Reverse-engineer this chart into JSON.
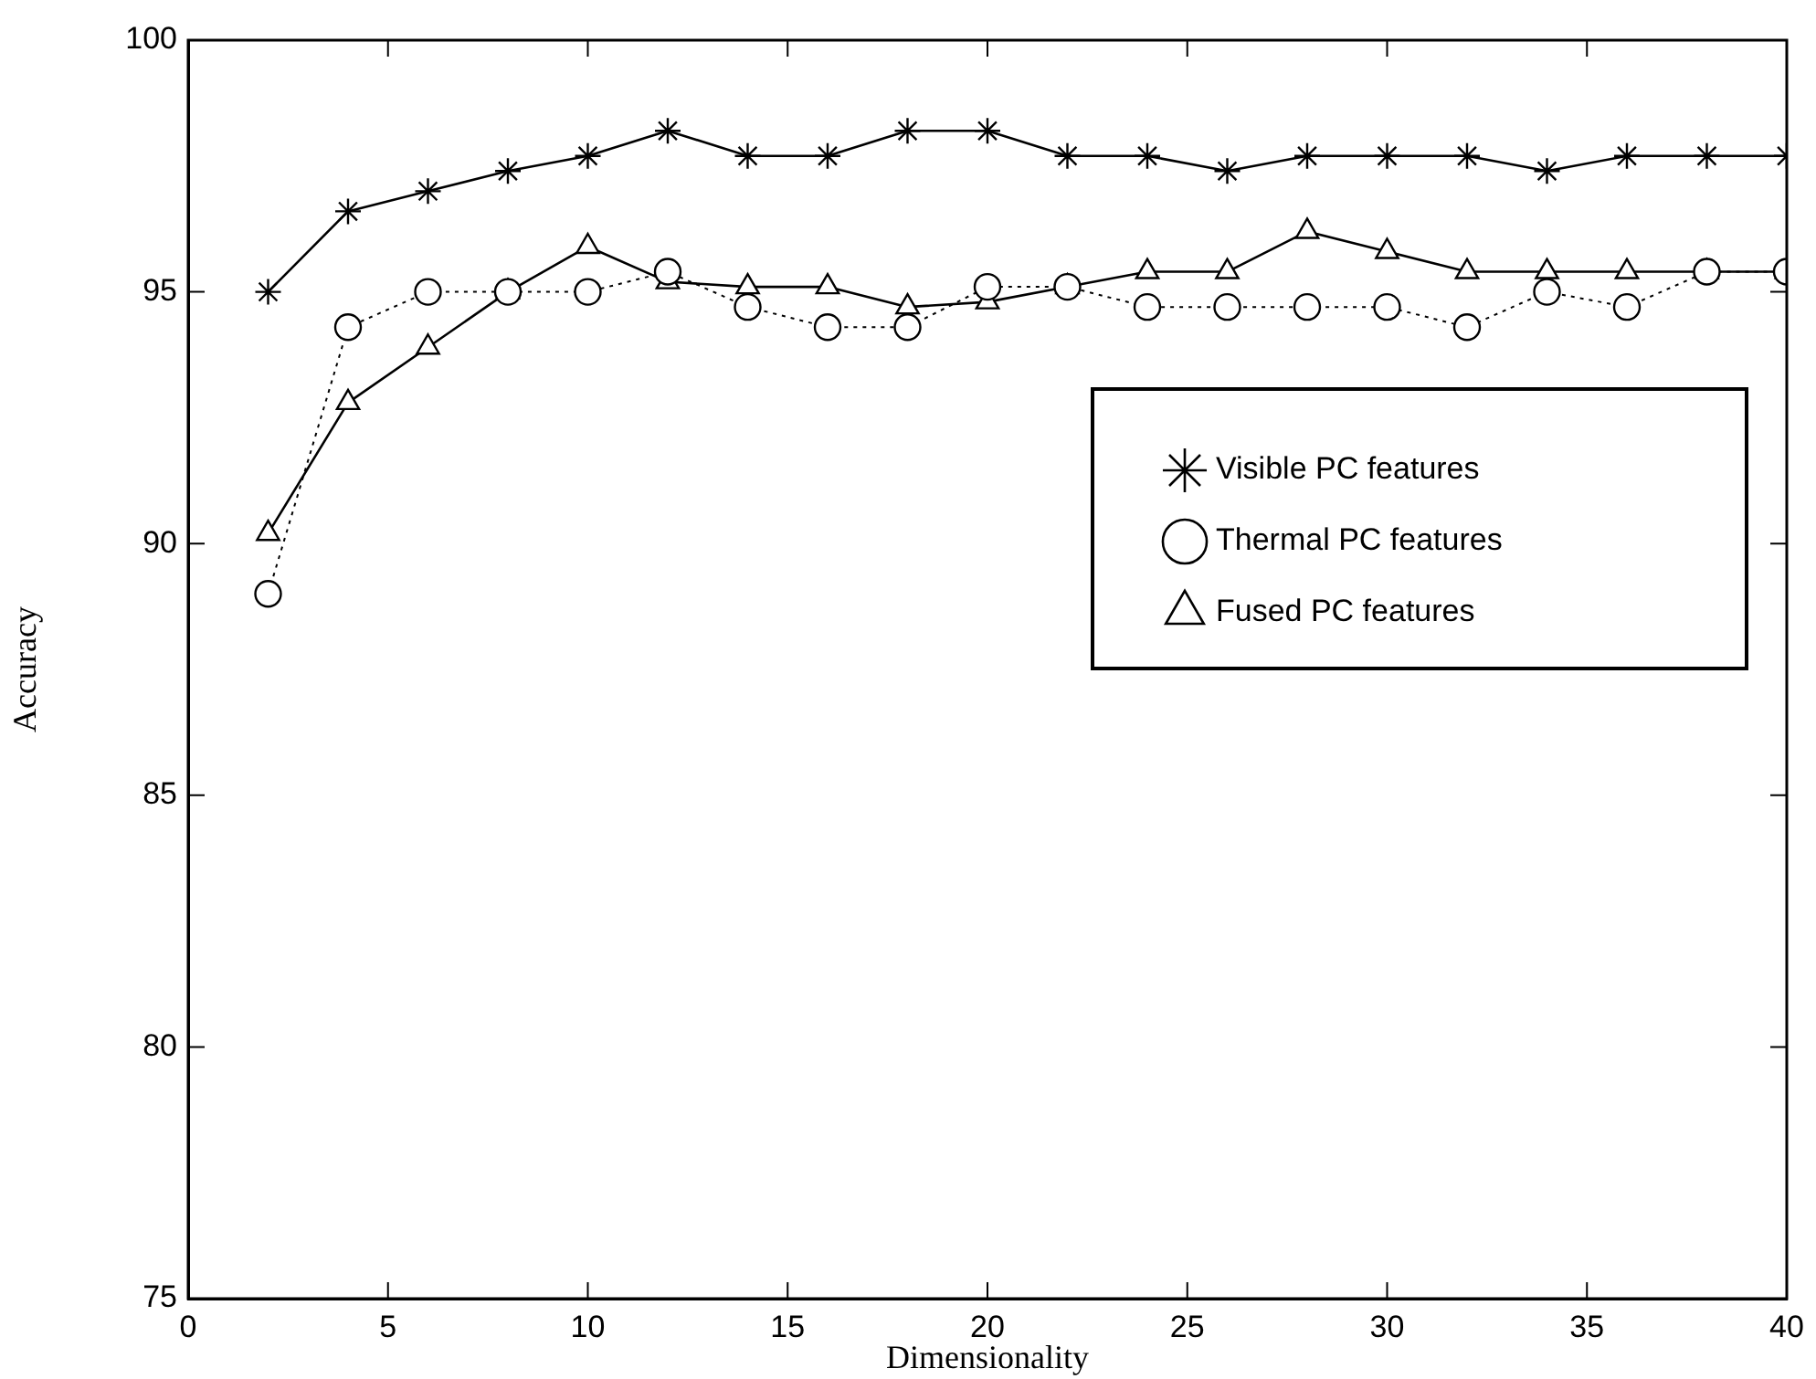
{
  "chart_data": {
    "type": "line",
    "xlabel": "Dimensionality",
    "ylabel": "Accuracy",
    "x": [
      2,
      4,
      6,
      8,
      10,
      12,
      14,
      16,
      18,
      20,
      22,
      24,
      26,
      28,
      30,
      32,
      34,
      36,
      38,
      40
    ],
    "xlim": [
      0,
      40
    ],
    "xticks": [
      0,
      5,
      10,
      15,
      20,
      25,
      30,
      35,
      40
    ],
    "ylim": [
      75,
      100
    ],
    "yticks": [
      75,
      80,
      85,
      90,
      95,
      100
    ],
    "grid": false,
    "legend": "right",
    "series": [
      {
        "name": "Visible PC features",
        "color": "#000000",
        "marker": "cross",
        "line_style": "solid",
        "values": [
          95.0,
          96.6,
          97.0,
          97.4,
          97.7,
          98.2,
          97.7,
          97.7,
          98.2,
          98.2,
          97.7,
          97.7,
          97.4,
          97.7,
          97.7,
          97.7,
          97.4,
          97.7,
          97.7,
          97.7
        ]
      },
      {
        "name": "Thermal PC features",
        "color": "#000000",
        "marker": "circle",
        "line_style": "dotted",
        "values": [
          89.0,
          94.3,
          95.0,
          95.0,
          95.0,
          95.4,
          94.7,
          94.3,
          94.3,
          95.1,
          95.1,
          94.7,
          94.7,
          94.7,
          94.7,
          94.3,
          95.0,
          94.7,
          95.4,
          95.4
        ]
      },
      {
        "name": "Fused PC features",
        "color": "#000000",
        "marker": "triangle",
        "line_style": "solid",
        "values": [
          90.2,
          92.8,
          93.9,
          95.0,
          95.9,
          95.2,
          95.1,
          95.1,
          94.7,
          94.8,
          95.1,
          95.4,
          95.4,
          96.2,
          95.8,
          95.4,
          95.4,
          95.4,
          95.4,
          95.4
        ]
      }
    ]
  }
}
